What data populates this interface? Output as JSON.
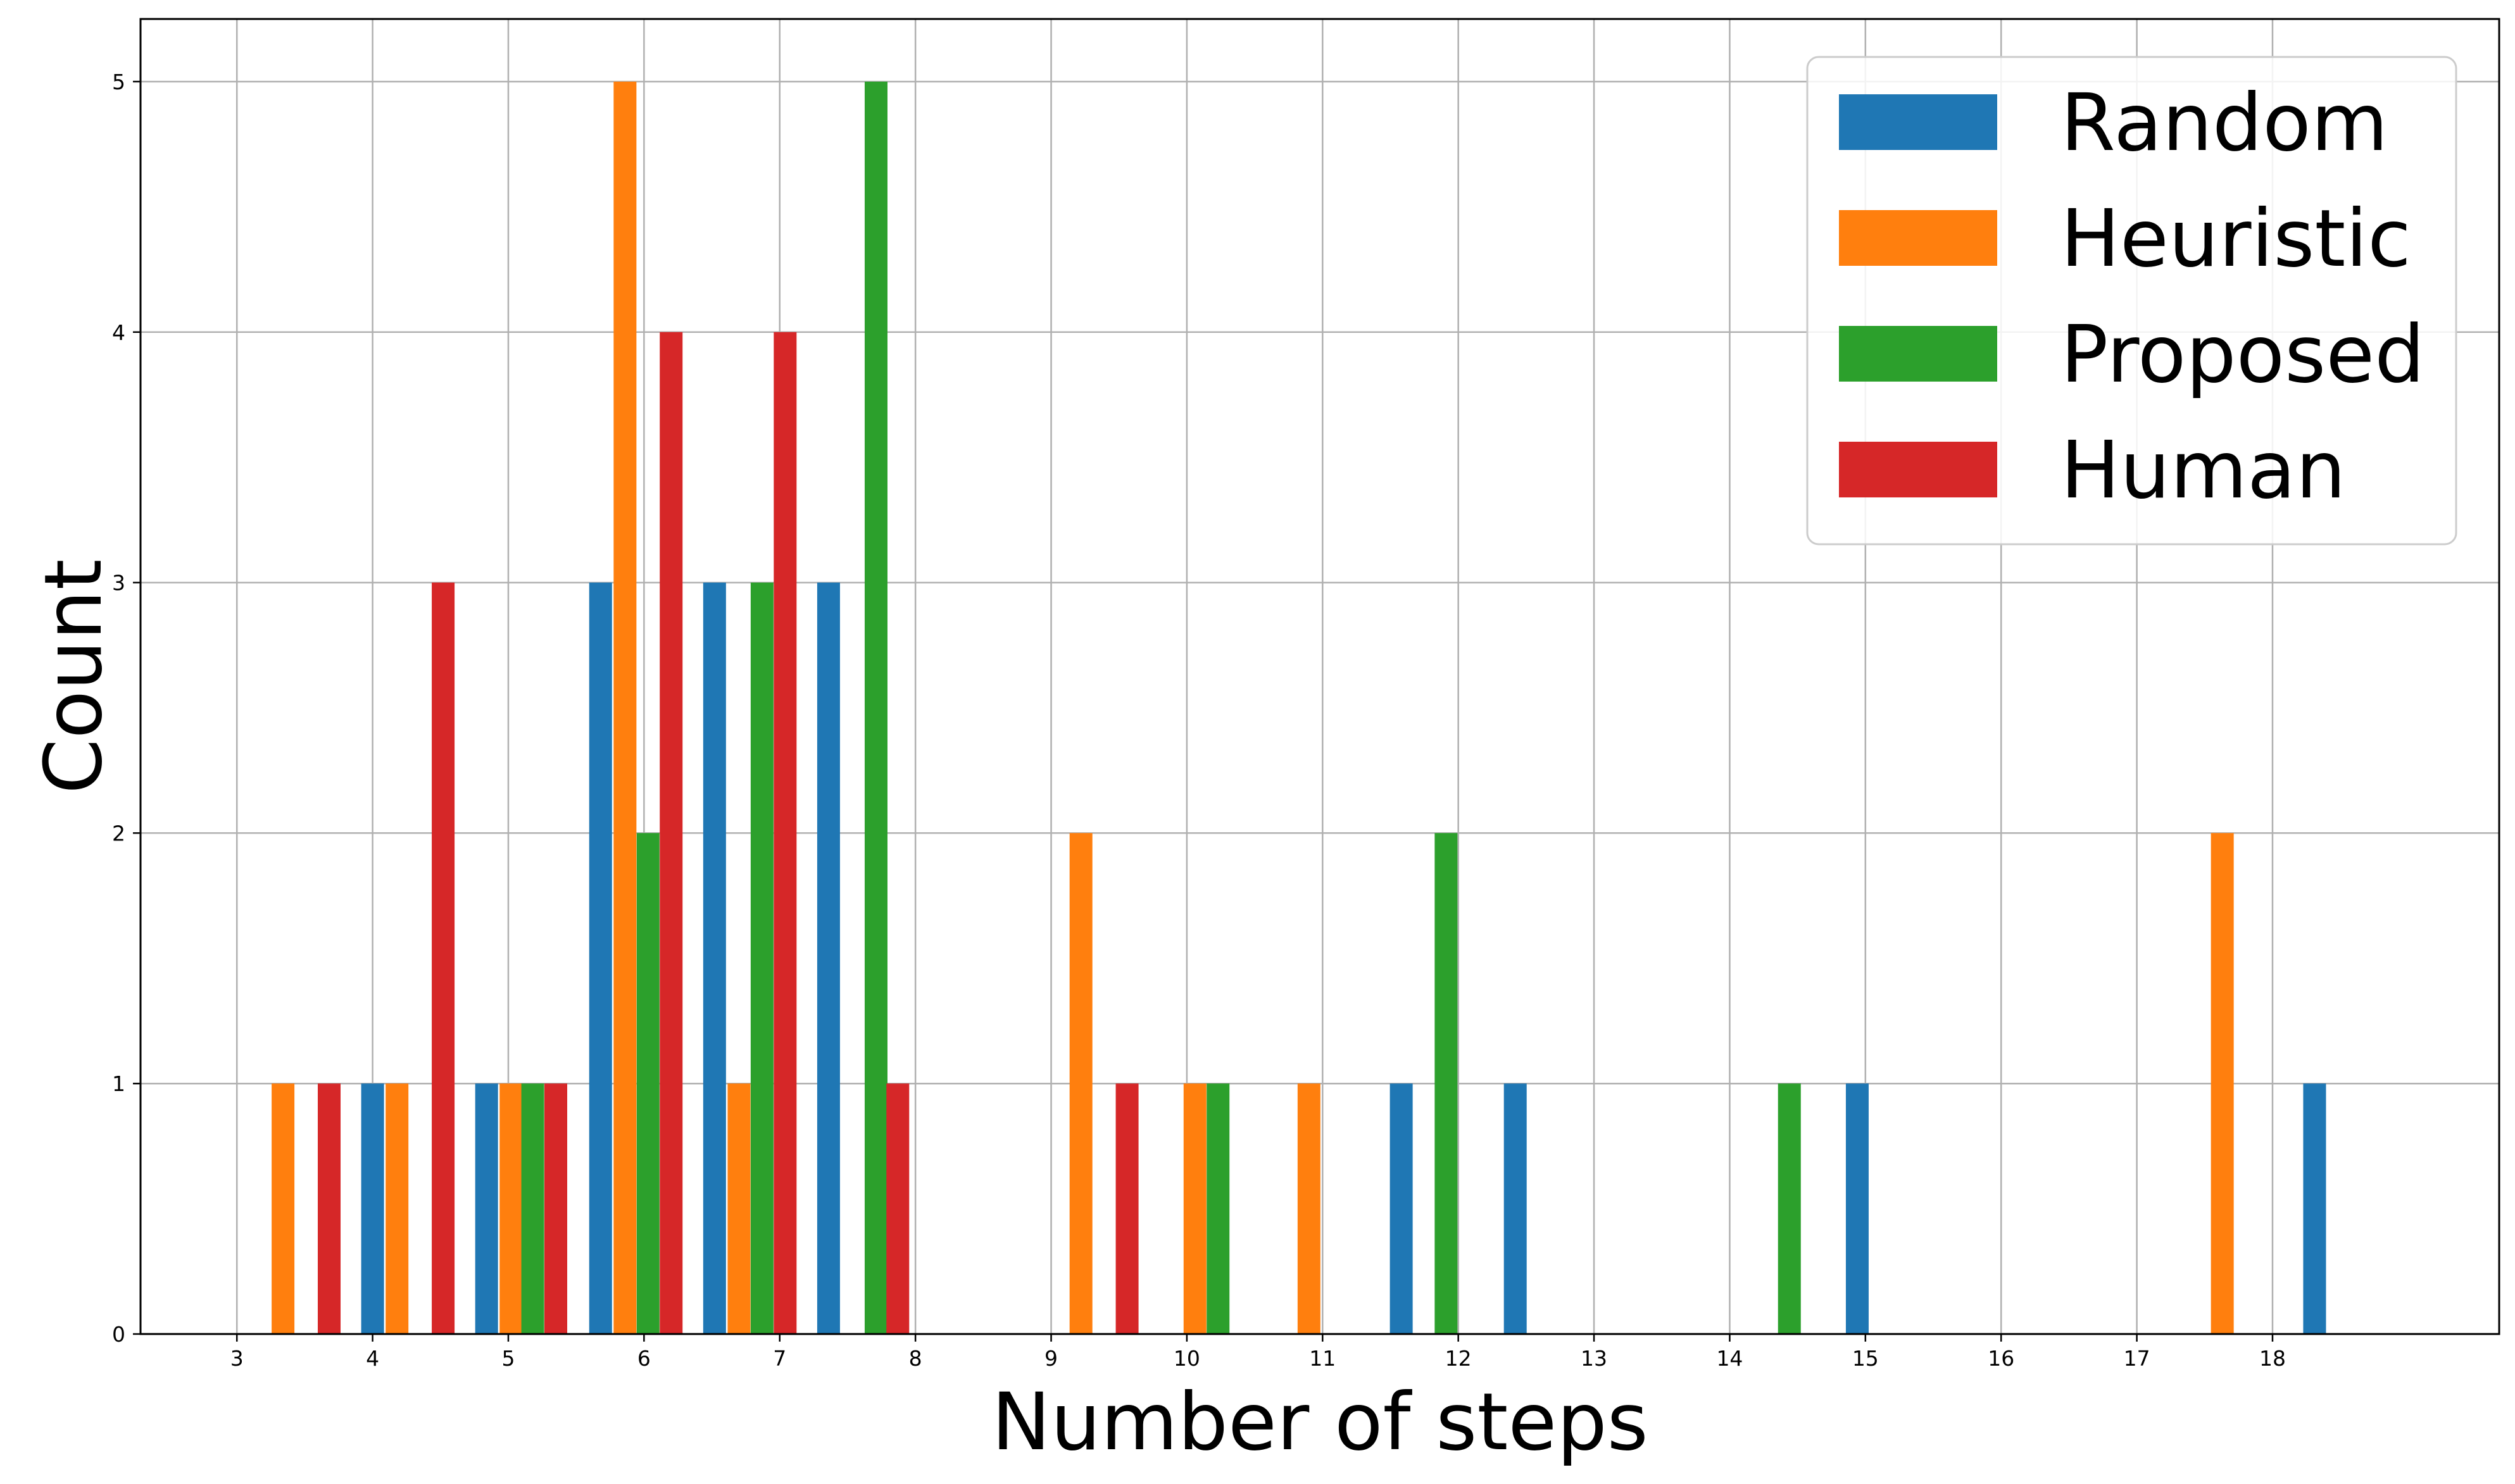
{
  "chart_data": {
    "type": "bar",
    "xlabel": "Number of steps",
    "ylabel": "Count",
    "xticks": [
      3,
      4,
      5,
      6,
      7,
      8,
      9,
      10,
      11,
      12,
      13,
      14,
      15,
      16,
      17,
      18
    ],
    "yticks": [
      0,
      1,
      2,
      3,
      4,
      5
    ],
    "xlim": [
      2.29,
      19.67
    ],
    "ylim": [
      0,
      5.25
    ],
    "grid": true,
    "legend_position": "top-right",
    "bar_width": 0.168,
    "series": [
      {
        "name": "Random",
        "color": "#1f77b4",
        "points": [
          {
            "x": 4.0,
            "y": 1
          },
          {
            "x": 4.84,
            "y": 1
          },
          {
            "x": 5.68,
            "y": 3
          },
          {
            "x": 6.52,
            "y": 3
          },
          {
            "x": 7.36,
            "y": 3
          },
          {
            "x": 11.58,
            "y": 1
          },
          {
            "x": 12.42,
            "y": 1
          },
          {
            "x": 14.94,
            "y": 1
          },
          {
            "x": 18.31,
            "y": 1
          }
        ]
      },
      {
        "name": "Heuristic",
        "color": "#ff7f0e",
        "points": [
          {
            "x": 3.34,
            "y": 1
          },
          {
            "x": 4.18,
            "y": 1
          },
          {
            "x": 5.02,
            "y": 1
          },
          {
            "x": 5.86,
            "y": 5
          },
          {
            "x": 6.7,
            "y": 1
          },
          {
            "x": 9.22,
            "y": 2
          },
          {
            "x": 10.06,
            "y": 1
          },
          {
            "x": 10.9,
            "y": 1
          },
          {
            "x": 17.63,
            "y": 2
          }
        ]
      },
      {
        "name": "Proposed",
        "color": "#2ca02c",
        "points": [
          {
            "x": 5.18,
            "y": 1
          },
          {
            "x": 6.03,
            "y": 2
          },
          {
            "x": 6.87,
            "y": 3
          },
          {
            "x": 7.71,
            "y": 5
          },
          {
            "x": 10.23,
            "y": 1
          },
          {
            "x": 11.91,
            "y": 2
          },
          {
            "x": 14.44,
            "y": 1
          }
        ]
      },
      {
        "name": "Human",
        "color": "#d62728",
        "points": [
          {
            "x": 3.68,
            "y": 1
          },
          {
            "x": 4.52,
            "y": 3
          },
          {
            "x": 5.35,
            "y": 1
          },
          {
            "x": 6.2,
            "y": 4
          },
          {
            "x": 7.04,
            "y": 4
          },
          {
            "x": 7.87,
            "y": 1
          },
          {
            "x": 9.56,
            "y": 1
          }
        ]
      }
    ]
  }
}
